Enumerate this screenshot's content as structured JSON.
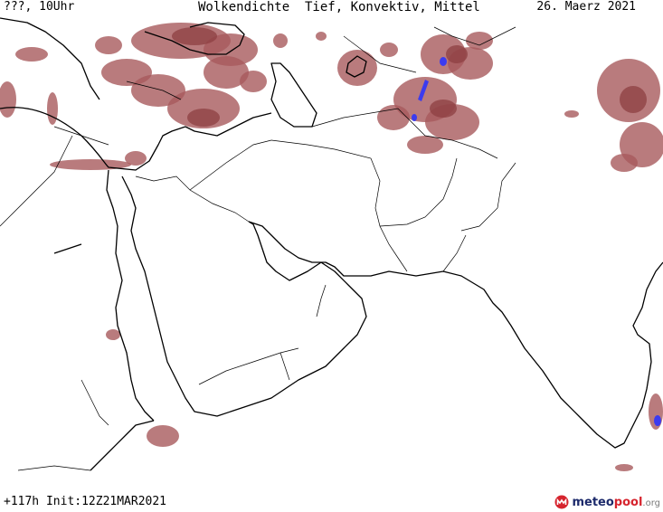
{
  "header": {
    "left": "???, 10Uhr",
    "title": "Wolkendichte  Tief, Konvektiv, Mittel",
    "date": "26. Maerz 2021"
  },
  "footer": {
    "run": "+117h Init:12Z21MAR2021",
    "logo_a": "meteo",
    "logo_b": "pool",
    "logo_c": ".org"
  },
  "colors": {
    "cloud": "#a85a5c",
    "convective": "#3b3bf0",
    "logo_red": "#d6242e",
    "logo_blue": "#1c2a6b"
  }
}
